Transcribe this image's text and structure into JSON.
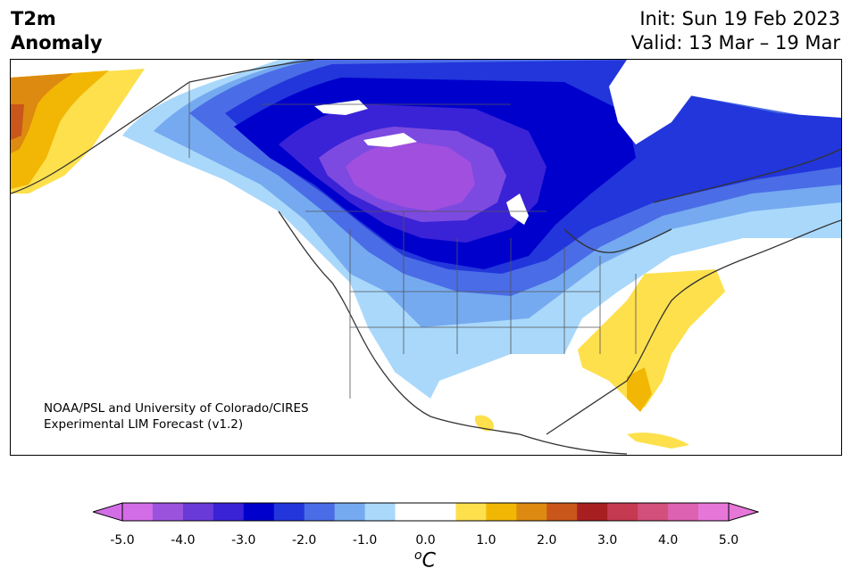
{
  "title": {
    "variable_line1": "T2m",
    "variable_line2": "Anomaly",
    "init_line": "Init: Sun 19 Feb 2023",
    "valid_line": "Valid: 13 Mar – 19 Mar"
  },
  "credit": {
    "line1": "NOAA/PSL and University of Colorado/CIRES",
    "line2": "Experimental LIM Forecast (v1.2)"
  },
  "colorbar": {
    "units_sup": "o",
    "units_main": "C",
    "ticks": [
      "-5.0",
      "-4.0",
      "-3.0",
      "-2.0",
      "-1.0",
      "0.0",
      "1.0",
      "2.0",
      "3.0",
      "4.0",
      "5.0"
    ],
    "colors": [
      "#d36de7",
      "#9b53dd",
      "#6a3ad9",
      "#3a22d6",
      "#0000cd",
      "#2236db",
      "#4a6ce6",
      "#75aaf0",
      "#a9d8fb",
      "#ffffff",
      "#ffffff",
      "#fde04c",
      "#f2b705",
      "#dd8a10",
      "#c9561a",
      "#a81f22",
      "#c53a50",
      "#d2507b",
      "#dd62b1",
      "#e677d8"
    ],
    "under_color": "#d36de7",
    "over_color": "#e677d8"
  },
  "map": {
    "region": "North America",
    "colors": {
      "deep_purple": "#a04fdf",
      "purple": "#7c4ae0",
      "indigo": "#3a22d6",
      "blue": "#0000cd",
      "mid_blue": "#2236db",
      "blue2": "#4a6ce6",
      "light_blue": "#75aaf0",
      "pale_blue": "#a9d8fb",
      "yellow": "#fde04c",
      "gold": "#f2b705",
      "orange": "#dd8a10",
      "red_orange": "#c9561a",
      "coast": "#333333"
    }
  }
}
